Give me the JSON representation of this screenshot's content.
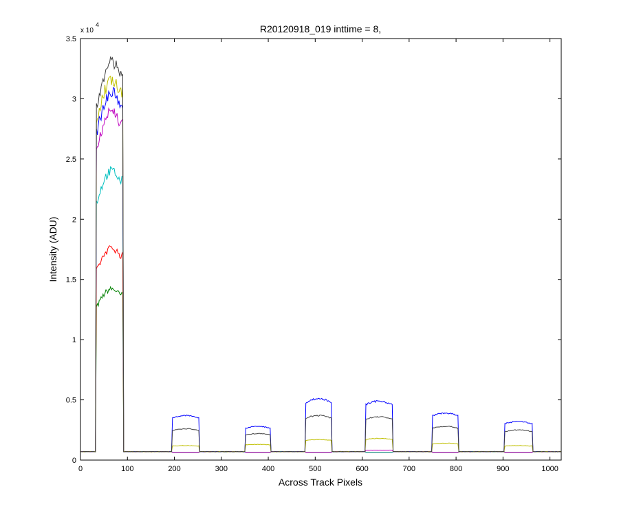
{
  "chart_data": {
    "type": "line",
    "title": "R20120918_019 inttime = 8,",
    "xlabel": "Across Track Pixels",
    "ylabel": "Intensity (ADU)",
    "y_exponent_label": "x 10",
    "y_exponent_power": "4",
    "xlim": [
      0,
      1024
    ],
    "ylim": [
      0,
      35000
    ],
    "x_ticks": [
      0,
      100,
      200,
      300,
      400,
      500,
      600,
      700,
      800,
      900,
      1000
    ],
    "x_tick_labels": [
      "0",
      "100",
      "200",
      "300",
      "400",
      "500",
      "600",
      "700",
      "800",
      "900",
      "1000"
    ],
    "y_ticks": [
      0,
      5000,
      10000,
      15000,
      20000,
      25000,
      30000,
      35000
    ],
    "y_tick_labels": [
      "0",
      "0.5",
      "1",
      "1.5",
      "2",
      "2.5",
      "3",
      "3.5"
    ],
    "grid": false,
    "legend": "none",
    "baseline": 700,
    "regions": [
      [
        33,
        91
      ],
      [
        196,
        253
      ],
      [
        352,
        405
      ],
      [
        480,
        535
      ],
      [
        608,
        664
      ],
      [
        749,
        805
      ],
      [
        904,
        962
      ]
    ],
    "series": [
      {
        "color": "#008000",
        "peaks": [
          14200,
          100,
          60,
          120,
          120,
          100,
          70
        ]
      },
      {
        "color": "#ff0000",
        "peaks": [
          17600,
          120,
          80,
          150,
          140,
          120,
          90
        ]
      },
      {
        "color": "#00bfbf",
        "peaks": [
          24000,
          160,
          100,
          200,
          180,
          150,
          120
        ]
      },
      {
        "color": "#bf00bf",
        "peaks": [
          29000,
          140,
          90,
          160,
          820,
          130,
          100
        ]
      },
      {
        "color": "#0000ff",
        "peaks": [
          30500,
          3700,
          2800,
          5100,
          4900,
          3900,
          3200
        ]
      },
      {
        "color": "#bfbf00",
        "peaks": [
          31500,
          1200,
          1300,
          1700,
          1800,
          1400,
          1200
        ]
      },
      {
        "color": "#404040",
        "peaks": [
          33000,
          2600,
          2200,
          3700,
          3600,
          2800,
          2500
        ]
      }
    ]
  }
}
